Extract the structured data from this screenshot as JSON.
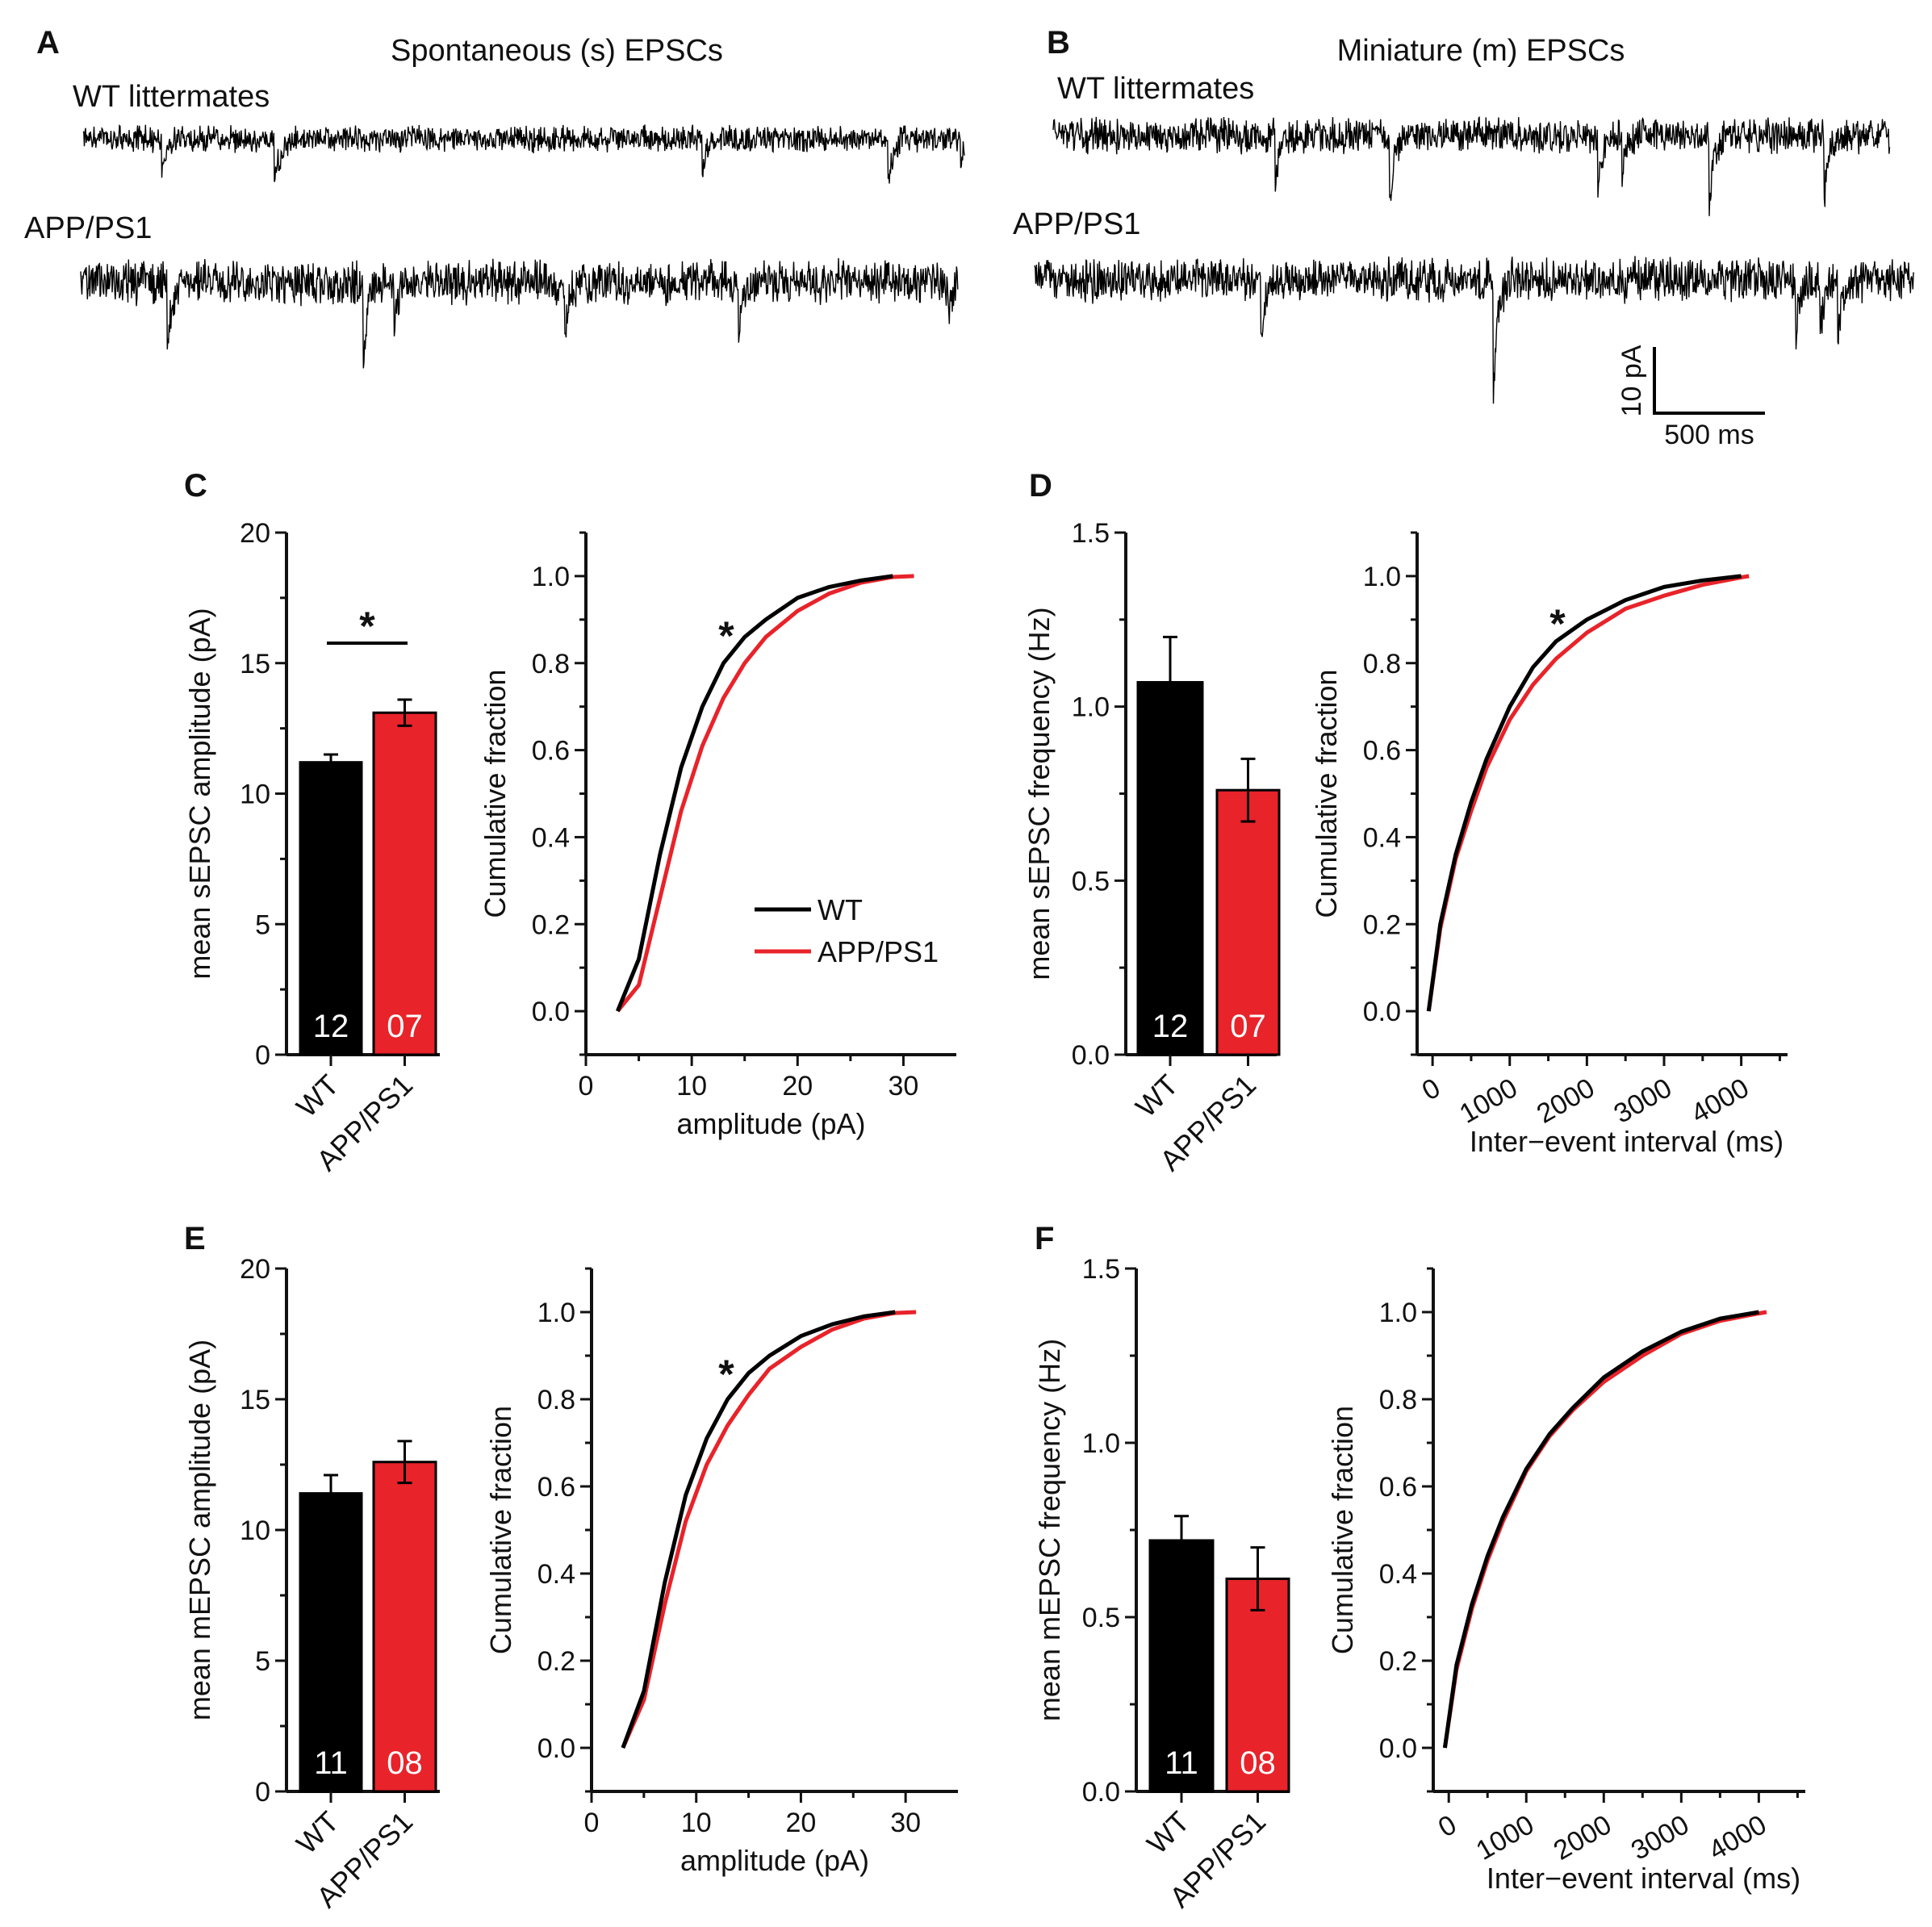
{
  "colors": {
    "wt": "#000000",
    "app": "#e8232a",
    "axis": "#111111"
  },
  "panels": {
    "A": {
      "letter": "A",
      "title": "Spontaneous (s) EPSCs",
      "wt_label": "WT littermates",
      "app_label": "APP/PS1"
    },
    "B": {
      "letter": "B",
      "title": "Miniature (m) EPSCs",
      "wt_label": "WT littermates",
      "app_label": "APP/PS1",
      "scale_y": "10 pA",
      "scale_x": "500 ms"
    },
    "C": {
      "letter": "C"
    },
    "D": {
      "letter": "D"
    },
    "E": {
      "letter": "E"
    },
    "F": {
      "letter": "F"
    }
  },
  "chart_data": [
    {
      "id": "C_bar",
      "type": "bar",
      "ylabel": "mean sEPSC amplitude (pA)",
      "ylim": [
        0,
        20
      ],
      "yticks": [
        "0",
        "5",
        "10",
        "15",
        "20"
      ],
      "categories": [
        "WT",
        "APP/PS1"
      ],
      "values": [
        11.2,
        13.1
      ],
      "errors": [
        0.3,
        0.5
      ],
      "n": [
        "12",
        "07"
      ],
      "significance": "*"
    },
    {
      "id": "C_cdf",
      "type": "line",
      "xlabel": "amplitude (pA)",
      "ylabel": "Cumulative fraction",
      "xlim": [
        0,
        35
      ],
      "ylim": [
        -0.1,
        1.1
      ],
      "xticks": [
        "0",
        "10",
        "20",
        "30"
      ],
      "yticks": [
        "0.0",
        "0.2",
        "0.4",
        "0.6",
        "0.8",
        "1.0"
      ],
      "legend": [
        "WT",
        "APP/PS1"
      ],
      "significance": "*",
      "series": [
        {
          "name": "WT",
          "x": [
            3,
            5,
            7,
            9,
            11,
            13,
            15,
            17,
            20,
            23,
            26,
            29
          ],
          "y": [
            0,
            0.12,
            0.36,
            0.56,
            0.7,
            0.8,
            0.86,
            0.9,
            0.95,
            0.975,
            0.99,
            1.0
          ]
        },
        {
          "name": "APP/PS1",
          "x": [
            3,
            5,
            7,
            9,
            11,
            13,
            15,
            17,
            20,
            23,
            26,
            29,
            31
          ],
          "y": [
            0,
            0.06,
            0.26,
            0.46,
            0.61,
            0.72,
            0.8,
            0.86,
            0.92,
            0.96,
            0.985,
            0.998,
            1.0
          ]
        }
      ]
    },
    {
      "id": "D_bar",
      "type": "bar",
      "ylabel": "mean sEPSC frequency (Hz)",
      "ylim": [
        0,
        1.5
      ],
      "yticks": [
        "0.0",
        "0.5",
        "1.0",
        "1.5"
      ],
      "categories": [
        "WT",
        "APP/PS1"
      ],
      "values": [
        1.07,
        0.76
      ],
      "errors": [
        0.13,
        0.09
      ],
      "n": [
        "12",
        "07"
      ]
    },
    {
      "id": "D_cdf",
      "type": "line",
      "xlabel": "Inter−event interval (ms)",
      "ylabel": "Cumulative fraction",
      "xlim": [
        -200,
        4600
      ],
      "ylim": [
        -0.1,
        1.1
      ],
      "xticks": [
        "0",
        "1000",
        "2000",
        "3000",
        "4000"
      ],
      "yticks": [
        "0.0",
        "0.2",
        "0.4",
        "0.6",
        "0.8",
        "1.0"
      ],
      "significance": "*",
      "series": [
        {
          "name": "WT",
          "x": [
            -50,
            100,
            300,
            500,
            700,
            1000,
            1300,
            1600,
            2000,
            2500,
            3000,
            3500,
            4000
          ],
          "y": [
            0,
            0.2,
            0.36,
            0.48,
            0.58,
            0.7,
            0.79,
            0.85,
            0.9,
            0.945,
            0.975,
            0.99,
            1.0
          ]
        },
        {
          "name": "APP/PS1",
          "x": [
            -50,
            100,
            300,
            500,
            700,
            1000,
            1300,
            1600,
            2000,
            2500,
            3000,
            3500,
            4000,
            4100
          ],
          "y": [
            0,
            0.19,
            0.35,
            0.46,
            0.56,
            0.67,
            0.75,
            0.81,
            0.87,
            0.925,
            0.955,
            0.98,
            0.997,
            1.0
          ]
        }
      ]
    },
    {
      "id": "E_bar",
      "type": "bar",
      "ylabel": "mean mEPSC amplitude (pA)",
      "ylim": [
        0,
        20
      ],
      "yticks": [
        "0",
        "5",
        "10",
        "15",
        "20"
      ],
      "categories": [
        "WT",
        "APP/PS1"
      ],
      "values": [
        11.4,
        12.6
      ],
      "errors": [
        0.7,
        0.8
      ],
      "n": [
        "11",
        "08"
      ]
    },
    {
      "id": "E_cdf",
      "type": "line",
      "xlabel": "amplitude (pA)",
      "ylabel": "Cumulative fraction",
      "xlim": [
        0,
        35
      ],
      "ylim": [
        -0.1,
        1.1
      ],
      "xticks": [
        "0",
        "10",
        "20",
        "30"
      ],
      "yticks": [
        "0.0",
        "0.2",
        "0.4",
        "0.6",
        "0.8",
        "1.0"
      ],
      "significance": "*",
      "series": [
        {
          "name": "WT",
          "x": [
            3,
            5,
            7,
            9,
            11,
            13,
            15,
            17,
            20,
            23,
            26,
            29
          ],
          "y": [
            0,
            0.13,
            0.38,
            0.58,
            0.71,
            0.8,
            0.86,
            0.9,
            0.945,
            0.972,
            0.99,
            1.0
          ]
        },
        {
          "name": "APP/PS1",
          "x": [
            3,
            5,
            7,
            9,
            11,
            13,
            15,
            17,
            20,
            23,
            26,
            29,
            31
          ],
          "y": [
            0,
            0.11,
            0.33,
            0.52,
            0.65,
            0.74,
            0.81,
            0.87,
            0.92,
            0.96,
            0.985,
            0.998,
            1.0
          ]
        }
      ]
    },
    {
      "id": "F_bar",
      "type": "bar",
      "ylabel": "mean mEPSC frequency (Hz)",
      "ylim": [
        0,
        1.5
      ],
      "yticks": [
        "0.0",
        "0.5",
        "1.0",
        "1.5"
      ],
      "categories": [
        "WT",
        "APP/PS1"
      ],
      "values": [
        0.72,
        0.61
      ],
      "errors": [
        0.07,
        0.09
      ],
      "n": [
        "11",
        "08"
      ]
    },
    {
      "id": "F_cdf",
      "type": "line",
      "xlabel": "Inter−event interval (ms)",
      "ylabel": "Cumulative fraction",
      "xlim": [
        -200,
        4600
      ],
      "ylim": [
        -0.1,
        1.1
      ],
      "xticks": [
        "0",
        "1000",
        "2000",
        "3000",
        "4000"
      ],
      "yticks": [
        "0.0",
        "0.2",
        "0.4",
        "0.6",
        "0.8",
        "1.0"
      ],
      "series": [
        {
          "name": "WT",
          "x": [
            -50,
            100,
            300,
            500,
            700,
            1000,
            1300,
            1600,
            2000,
            2500,
            3000,
            3500,
            4000
          ],
          "y": [
            0,
            0.19,
            0.33,
            0.44,
            0.53,
            0.64,
            0.72,
            0.78,
            0.85,
            0.91,
            0.955,
            0.985,
            1.0
          ]
        },
        {
          "name": "APP/PS1",
          "x": [
            -50,
            100,
            300,
            500,
            700,
            1000,
            1300,
            1600,
            2000,
            2500,
            3000,
            3500,
            4000,
            4100
          ],
          "y": [
            0,
            0.18,
            0.32,
            0.43,
            0.52,
            0.635,
            0.715,
            0.775,
            0.84,
            0.9,
            0.95,
            0.98,
            0.997,
            1.0
          ]
        }
      ]
    }
  ]
}
